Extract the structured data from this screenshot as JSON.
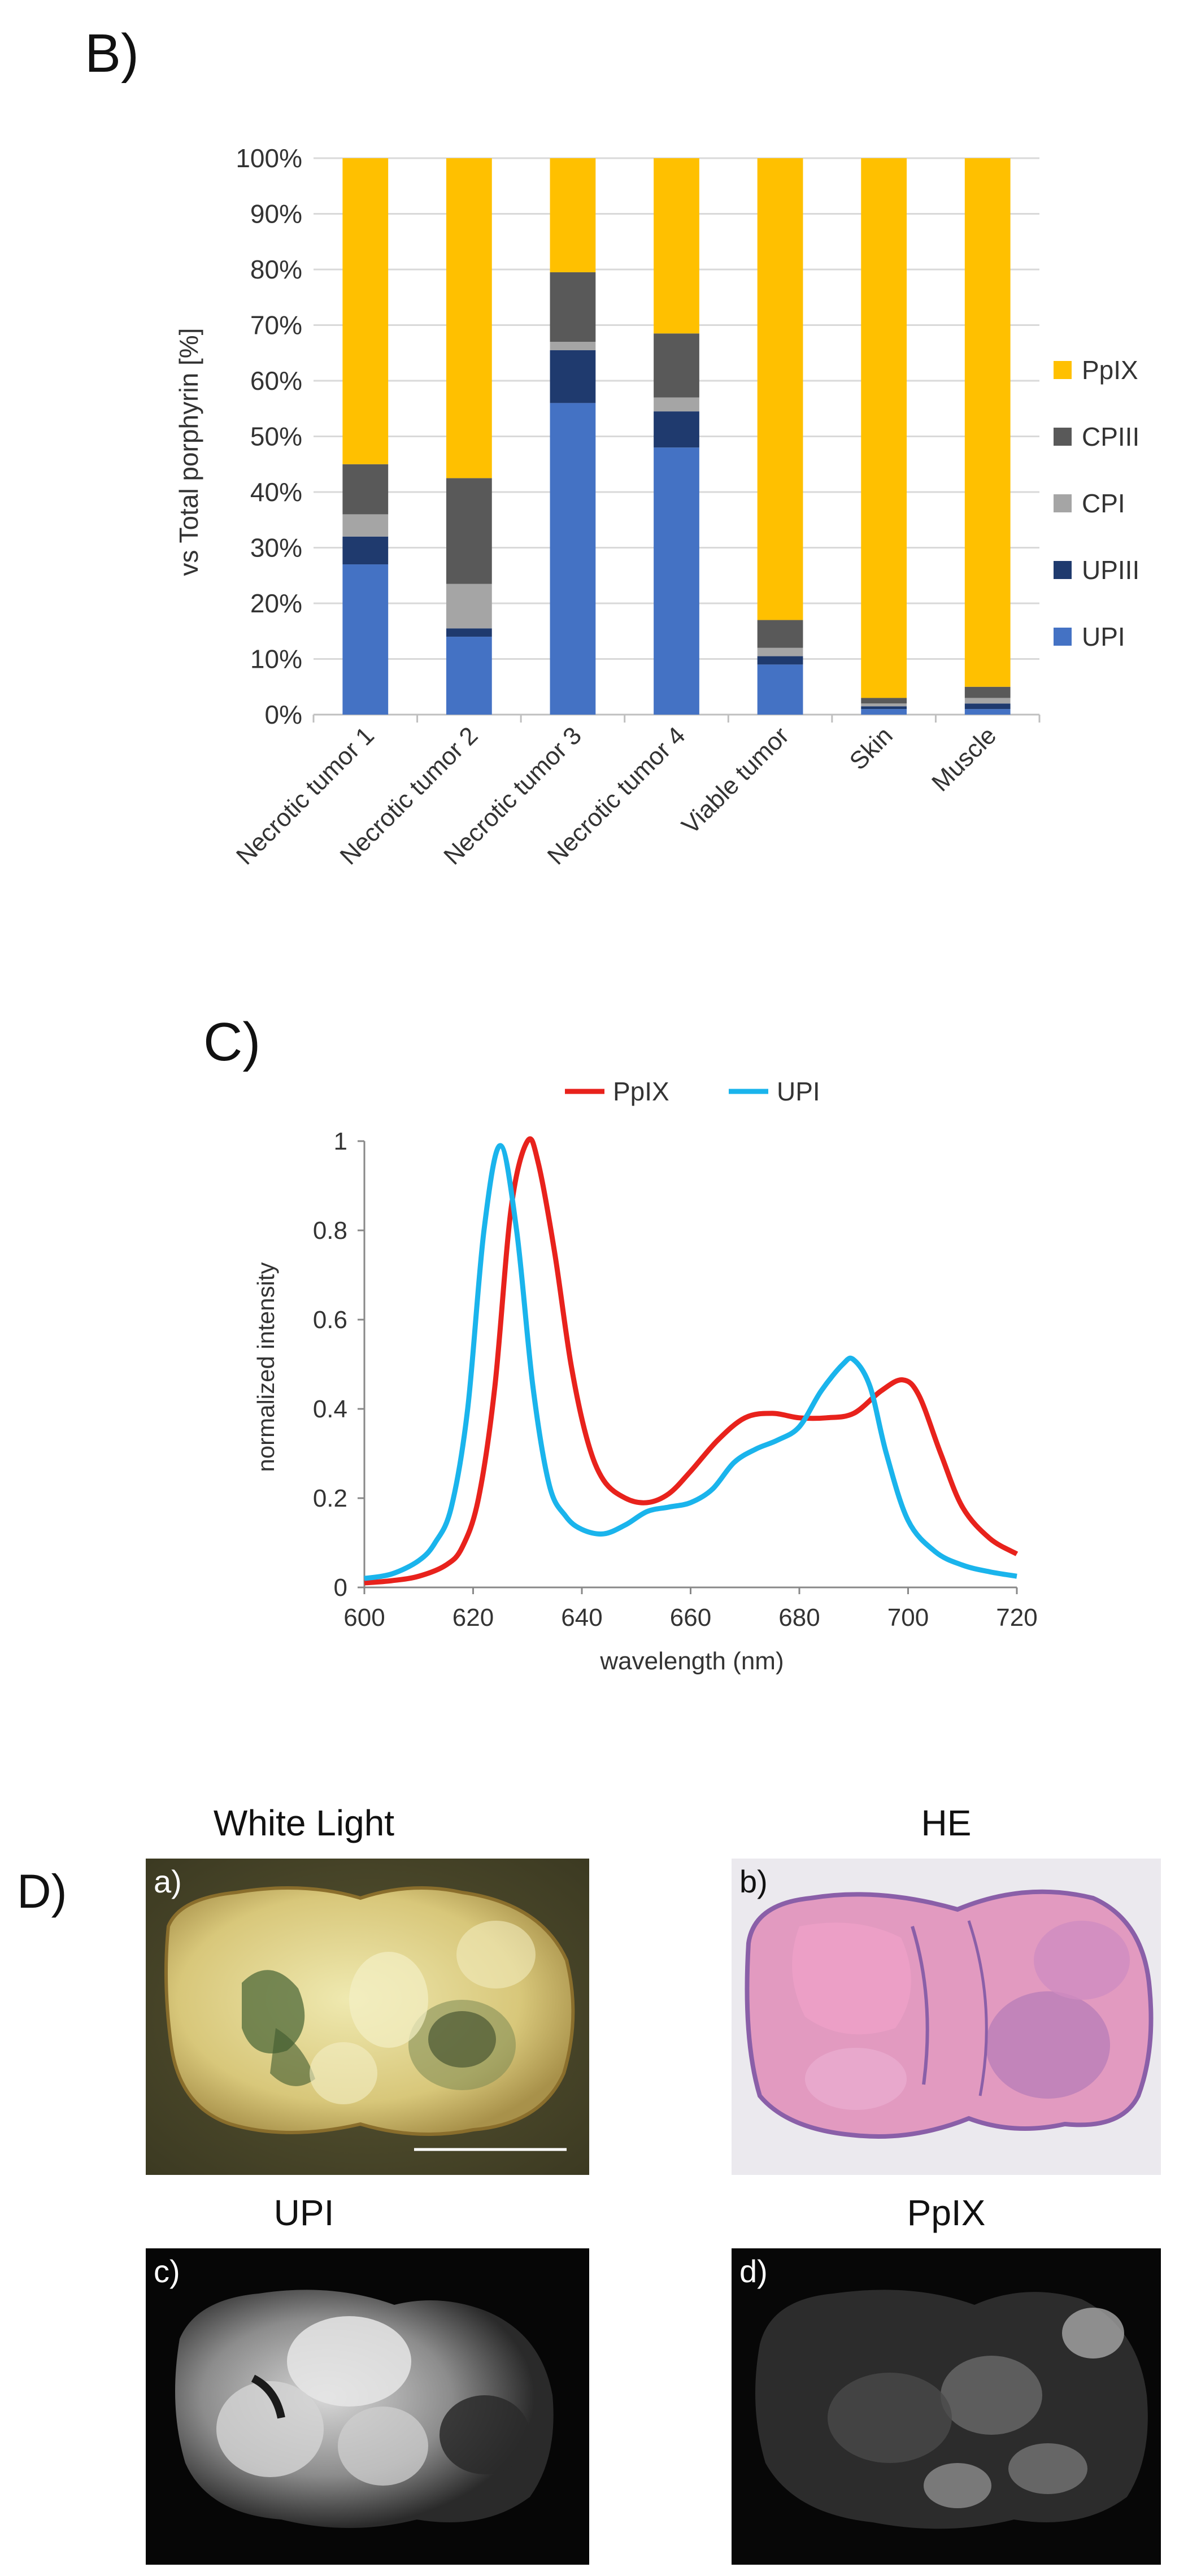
{
  "panels": {
    "B": {
      "label": "B)"
    },
    "C": {
      "label": "C)"
    },
    "D": {
      "label": "D)"
    }
  },
  "chart_b": {
    "type": "bar",
    "stacked": true,
    "ylabel": "vs Total porphyrin [%]",
    "y_ticks": [
      "0%",
      "10%",
      "20%",
      "30%",
      "40%",
      "50%",
      "60%",
      "70%",
      "80%",
      "90%",
      "100%"
    ],
    "ylim": [
      0,
      100
    ],
    "grid": true,
    "legend_position": "right",
    "categories": [
      "Necrotic tumor 1",
      "Necrotic tumor 2",
      "Necrotic tumor 3",
      "Necrotic tumor 4",
      "Viable tumor",
      "Skin",
      "Muscle"
    ],
    "series": [
      {
        "name": "UPI",
        "color": "#4472c4",
        "values": [
          27,
          14,
          56,
          48,
          9,
          1,
          1
        ]
      },
      {
        "name": "UPIII",
        "color": "#1f3a6e",
        "values": [
          5,
          1.5,
          9.5,
          6.5,
          1.5,
          0.5,
          1
        ]
      },
      {
        "name": "CPI",
        "color": "#a5a5a5",
        "values": [
          4,
          8,
          1.5,
          2.5,
          1.5,
          0.5,
          1
        ]
      },
      {
        "name": "CPIII",
        "color": "#595959",
        "values": [
          9,
          19,
          12.5,
          11.5,
          5,
          1,
          2
        ]
      },
      {
        "name": "PpIX",
        "color": "#ffc000",
        "values": [
          55,
          57.5,
          20.5,
          31.5,
          83,
          97,
          95
        ]
      }
    ],
    "legend_order": [
      "PpIX",
      "CPIII",
      "CPI",
      "UPIII",
      "UPI"
    ]
  },
  "chart_c": {
    "type": "line",
    "xlabel": "wavelength (nm)",
    "ylabel": "normalized  intensity",
    "xlim": [
      600,
      720
    ],
    "ylim": [
      0,
      1
    ],
    "x_ticks": [
      "600",
      "620",
      "640",
      "660",
      "680",
      "700",
      "720"
    ],
    "y_ticks": [
      "0",
      "0.2",
      "0.4",
      "0.6",
      "0.8",
      "1"
    ],
    "legend_position": "top",
    "series": [
      {
        "name": "PpIX",
        "color": "#e8221c",
        "x": [
          600,
          605,
          610,
          615,
          618,
          621,
          624,
          627,
          630,
          632,
          635,
          638,
          641,
          644,
          648,
          652,
          656,
          660,
          665,
          670,
          675,
          680,
          685,
          690,
          695,
          699,
          702,
          706,
          710,
          715,
          720
        ],
        "y": [
          0.01,
          0.015,
          0.025,
          0.05,
          0.09,
          0.2,
          0.45,
          0.85,
          1.0,
          0.95,
          0.75,
          0.5,
          0.33,
          0.24,
          0.2,
          0.19,
          0.21,
          0.26,
          0.33,
          0.38,
          0.39,
          0.38,
          0.38,
          0.39,
          0.44,
          0.465,
          0.43,
          0.3,
          0.18,
          0.11,
          0.075
        ]
      },
      {
        "name": "UPI",
        "color": "#1ab4ec",
        "x": [
          600,
          605,
          610,
          613,
          616,
          619,
          622,
          625,
          628,
          631,
          634,
          637,
          640,
          644,
          648,
          652,
          656,
          660,
          664,
          668,
          672,
          676,
          680,
          684,
          688,
          690,
          693,
          696,
          700,
          705,
          710,
          715,
          720
        ],
        "y": [
          0.02,
          0.03,
          0.06,
          0.1,
          0.18,
          0.4,
          0.8,
          0.99,
          0.8,
          0.45,
          0.23,
          0.16,
          0.13,
          0.12,
          0.14,
          0.17,
          0.18,
          0.19,
          0.22,
          0.28,
          0.31,
          0.33,
          0.36,
          0.44,
          0.5,
          0.51,
          0.45,
          0.3,
          0.15,
          0.08,
          0.05,
          0.035,
          0.025
        ]
      }
    ]
  },
  "panel_d": {
    "photos": [
      {
        "title": "White Light",
        "sublabel": "a)"
      },
      {
        "title": "HE",
        "sublabel": "b)"
      },
      {
        "title": "UPI",
        "sublabel": "c)"
      },
      {
        "title": "PpIX",
        "sublabel": "d)"
      }
    ]
  }
}
